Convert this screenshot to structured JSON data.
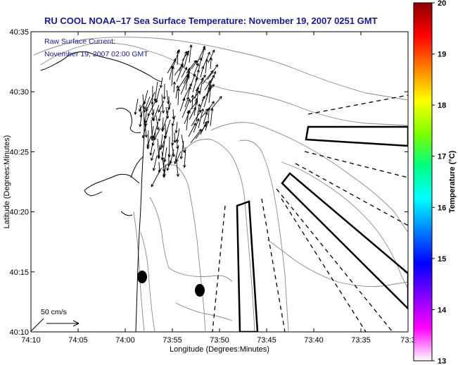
{
  "title": "RU COOL  NOAA–17  Sea Surface Temperature:  November 19, 2007 0251 GMT",
  "annotation": {
    "line1": "Raw Surface Current:",
    "line2": "November 19, 2007 02:00 GMT"
  },
  "scale_label": "50 cm/s",
  "x_axis": {
    "label": "Longitude (Degrees:Minutes)",
    "ticks": [
      "74:10",
      "74:05",
      "74:00",
      "73:55",
      "73:50",
      "73:45",
      "73:40",
      "73:35",
      "73:3"
    ]
  },
  "y_axis": {
    "label": "Latitude (Degrees:Minutes)",
    "ticks": [
      "40:35",
      "40:30",
      "40:25",
      "40:20",
      "40:15",
      "40:10"
    ]
  },
  "colorbar": {
    "label": "Temperature (°C)",
    "ticks": [
      "20",
      "19",
      "18",
      "17",
      "16",
      "15",
      "14",
      "13"
    ],
    "colors": [
      "#8b0000",
      "#ff0000",
      "#ff8000",
      "#ffff00",
      "#80ff00",
      "#00ff80",
      "#00ffff",
      "#0080ff",
      "#0000ff",
      "#8000ff",
      "#ff00ff",
      "#ffffff"
    ]
  },
  "colors": {
    "title": "#1a1a8c",
    "coast": "#000000",
    "bathymetry": "#888888",
    "background": "#ffffff"
  }
}
